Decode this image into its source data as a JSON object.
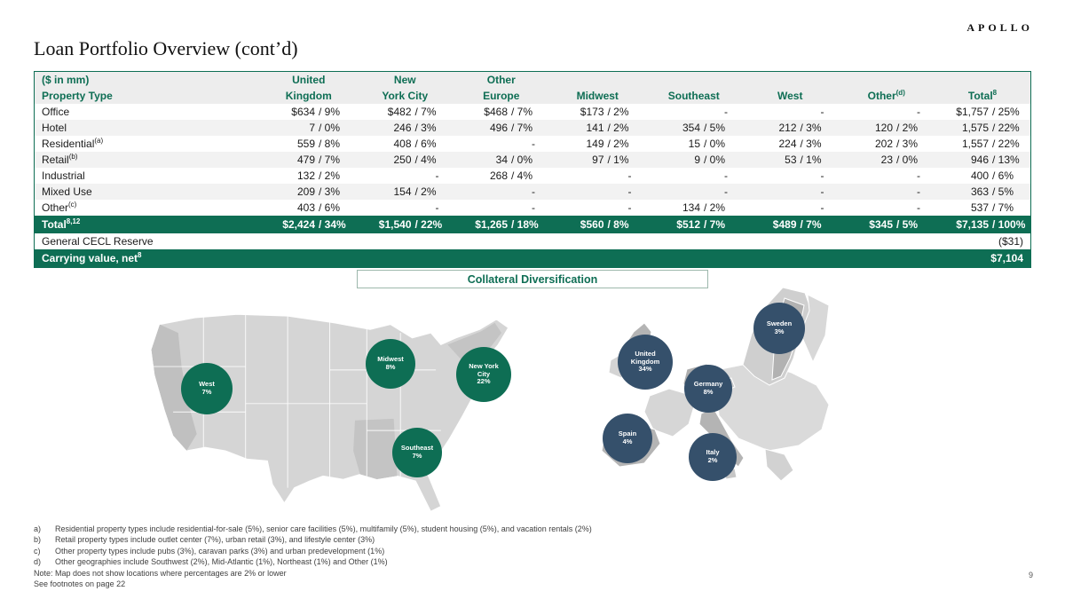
{
  "brand": {
    "logo_text": "APOLLO"
  },
  "page_number": "9",
  "title": "Loan Portfolio Overview (cont’d)",
  "table": {
    "unit_label": "($ in mm)",
    "property_type_header": "Property Type",
    "columns": [
      {
        "line1": "United",
        "line2": "Kingdom",
        "sup": ""
      },
      {
        "line1": "New",
        "line2": "York City",
        "sup": ""
      },
      {
        "line1": "Other",
        "line2": "Europe",
        "sup": ""
      },
      {
        "line1": "",
        "line2": "Midwest",
        "sup": ""
      },
      {
        "line1": "",
        "line2": "Southeast",
        "sup": ""
      },
      {
        "line1": "",
        "line2": "West",
        "sup": ""
      },
      {
        "line1": "",
        "line2": "Other",
        "sup": "(d)"
      },
      {
        "line1": "",
        "line2": "Total",
        "sup": "8"
      }
    ],
    "rows": [
      {
        "label": "Office",
        "sup": "",
        "cells": [
          "$634 / 9%",
          "$482 / 7%",
          "$468 / 7%",
          "$173 / 2%",
          "-",
          "-",
          "-",
          "$1,757 / 25%"
        ]
      },
      {
        "label": "Hotel",
        "sup": "",
        "cells": [
          "7 / 0%",
          "246 / 3%",
          "496 / 7%",
          "141 / 2%",
          "354 / 5%",
          "212 / 3%",
          "120 / 2%",
          "1,575 / 22%"
        ]
      },
      {
        "label": "Residential",
        "sup": "(a)",
        "cells": [
          "559 / 8%",
          "408 / 6%",
          "-",
          "149 / 2%",
          "15 / 0%",
          "224 / 3%",
          "202 / 3%",
          "1,557 / 22%"
        ]
      },
      {
        "label": "Retail",
        "sup": "(b)",
        "cells": [
          "479 / 7%",
          "250 / 4%",
          "34 / 0%",
          "97 / 1%",
          "9 / 0%",
          "53 / 1%",
          "23 / 0%",
          "946 / 13%"
        ]
      },
      {
        "label": "Industrial",
        "sup": "",
        "cells": [
          "132 / 2%",
          "-",
          "268 / 4%",
          "-",
          "-",
          "-",
          "-",
          "400 / 6%"
        ]
      },
      {
        "label": "Mixed Use",
        "sup": "",
        "cells": [
          "209 / 3%",
          "154 / 2%",
          "-",
          "-",
          "-",
          "-",
          "-",
          "363 / 5%"
        ]
      },
      {
        "label": "Other",
        "sup": "(c)",
        "cells": [
          "403 / 6%",
          "-",
          "-",
          "-",
          "134 / 2%",
          "-",
          "-",
          "537 / 7%"
        ]
      }
    ],
    "total_row": {
      "label": "Total",
      "sup": "8,12",
      "cells": [
        "$2,424 / 34%",
        "$1,540 / 22%",
        "$1,265 / 18%",
        "$560 / 8%",
        "$512 / 7%",
        "$489 / 7%",
        "$345 / 5%",
        "$7,135 / 100%"
      ]
    },
    "cecl_row": {
      "label": "General CECL Reserve",
      "value": "($31)"
    },
    "carrying_row": {
      "label": "Carrying value, net",
      "sup": "8",
      "value": "$7,104"
    }
  },
  "map_section": {
    "title": "Collateral Diversification",
    "us_bubbles": [
      {
        "region": "West",
        "pct": "7%"
      },
      {
        "region": "Midwest",
        "pct": "8%"
      },
      {
        "region": "New York City",
        "pct": "22%"
      },
      {
        "region": "Southeast",
        "pct": "7%"
      }
    ],
    "europe_bubbles": [
      {
        "region": "United Kingdom",
        "pct": "34%"
      },
      {
        "region": "Sweden",
        "pct": "3%"
      },
      {
        "region": "Germany",
        "pct": "8%"
      },
      {
        "region": "Spain",
        "pct": "4%"
      },
      {
        "region": "Italy",
        "pct": "2%"
      }
    ]
  },
  "footnotes": [
    {
      "marker": "a)",
      "text": "Residential property types include residential-for-sale (5%), senior care facilities (5%), multifamily (5%), student housing (5%), and vacation rentals (2%)"
    },
    {
      "marker": "b)",
      "text": "Retail property types include outlet center (7%), urban retail (3%), and lifestyle center (3%)"
    },
    {
      "marker": "c)",
      "text": "Other property types include pubs (3%), caravan parks (3%) and urban predevelopment (1%)"
    },
    {
      "marker": "d)",
      "text": "Other geographies include Southwest (2%), Mid-Atlantic (1%), Northeast (1%) and Other (1%)"
    },
    {
      "marker": "",
      "text": "Note: Map does not show locations where percentages are 2% or lower"
    },
    {
      "marker": "",
      "text": "See footnotes on page 22"
    }
  ],
  "colors": {
    "accent_green": "#0E6E54",
    "us_bubble": "#0E6E54",
    "europe_bubble": "#35506B"
  }
}
